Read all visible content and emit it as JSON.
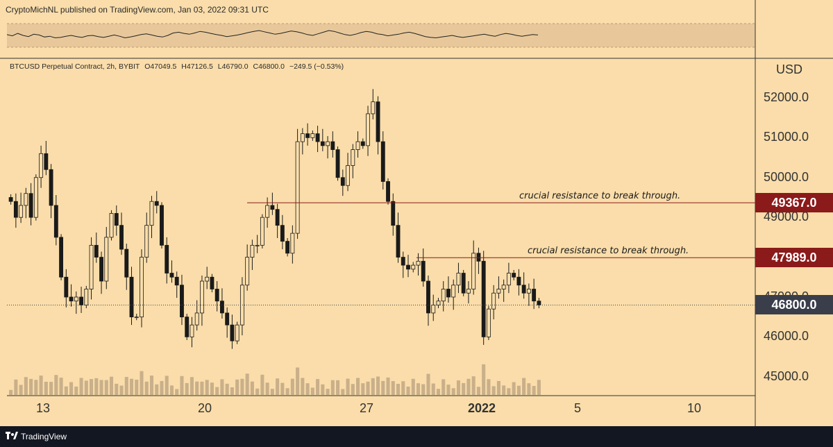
{
  "header": {
    "publisher_text": "CryptoMichNL published on TradingView.com, Jan 03, 2022 09:31 UTC"
  },
  "legend": {
    "symbol": "BTCUSD Perpetual Contract, 2h, BYBIT",
    "open": "O47049.5",
    "high": "H47126.5",
    "low": "L46790.0",
    "close": "C46800.0",
    "change": "−249.5 (−0.53%)"
  },
  "price_axis": {
    "currency": "USD"
  },
  "annotations": [
    {
      "text": "crucial resistance to break through.",
      "level": 49367
    },
    {
      "text": "crucial resistance to break through.",
      "level": 47989
    }
  ],
  "price_tags": [
    {
      "label": "49367.0",
      "color": "#8b1a1a"
    },
    {
      "label": "47989.0",
      "color": "#8b1a1a"
    },
    {
      "label": "46800.0",
      "color": "#3a3e4a"
    }
  ],
  "footer": {
    "brand": "TradingView"
  },
  "colors": {
    "background": "#faddaa",
    "candle": "#1a1a1a",
    "resistance": "#8b1a1a",
    "footer": "#131722"
  },
  "chart_data": {
    "type": "candlestick",
    "title": "BTCUSD Perpetual Contract, 2h, BYBIT",
    "ylabel": "USD",
    "ylim": [
      44700,
      52400
    ],
    "y_ticks": [
      "45000.0",
      "46000.0",
      "47000.0",
      "48000.0",
      "49000.0",
      "50000.0",
      "51000.0",
      "52000.0"
    ],
    "x_ticks": [
      {
        "label": "13",
        "bold": false
      },
      {
        "label": "20",
        "bold": false
      },
      {
        "label": "27",
        "bold": false
      },
      {
        "label": "2022",
        "bold": true
      },
      {
        "label": "5",
        "bold": false
      },
      {
        "label": "10",
        "bold": false
      }
    ],
    "grid": false,
    "last_price": 46800,
    "resistance_levels": [
      49367,
      47989
    ],
    "series_close": [
      49400,
      49000,
      49300,
      49600,
      49000,
      50000,
      50600,
      50200,
      49300,
      48500,
      47500,
      47000,
      46900,
      47000,
      46800,
      47200,
      48300,
      48000,
      47400,
      48500,
      49100,
      48800,
      48200,
      47500,
      46500,
      46500,
      48000,
      48800,
      49400,
      49300,
      48300,
      47600,
      47500,
      47300,
      46500,
      46000,
      46300,
      46600,
      47400,
      47500,
      47200,
      46900,
      46600,
      46300,
      45900,
      46300,
      47300,
      48000,
      48300,
      48300,
      49000,
      49300,
      49200,
      48800,
      48400,
      48100,
      48600,
      50900,
      51100,
      51000,
      51100,
      50900,
      50800,
      50900,
      50700,
      50000,
      49800,
      50300,
      50700,
      50900,
      50800,
      51600,
      51900,
      50900,
      49900,
      49400,
      48800,
      48000,
      47800,
      47700,
      47800,
      47900,
      47400,
      46600,
      46800,
      46900,
      47200,
      47000,
      47300,
      47600,
      47100,
      47200,
      48100,
      47900,
      46000,
      46700,
      47100,
      47200,
      47300,
      47600,
      47500,
      47300,
      47100,
      47200,
      46900,
      46800
    ],
    "rsi_values": [
      52,
      49,
      55,
      50,
      47,
      53,
      51,
      46,
      48,
      44,
      45,
      48,
      50,
      47,
      45,
      49,
      50,
      47,
      45,
      48,
      51,
      48,
      44,
      46,
      49,
      52,
      54,
      51,
      48,
      46,
      50,
      56,
      58,
      55,
      53,
      56,
      60,
      58,
      55,
      52,
      50,
      47,
      49,
      51,
      54,
      57,
      60,
      62,
      59,
      56,
      53,
      55,
      58,
      61,
      59,
      56,
      52,
      50,
      54,
      58,
      62,
      60,
      56,
      52,
      50,
      53,
      57,
      60,
      58,
      54,
      52,
      49,
      51,
      53,
      56,
      58,
      55,
      51,
      47,
      45,
      44,
      46,
      48,
      50,
      47,
      45,
      47,
      49,
      51,
      53,
      50,
      48,
      52,
      55,
      53,
      50,
      48,
      50,
      52,
      51
    ]
  }
}
